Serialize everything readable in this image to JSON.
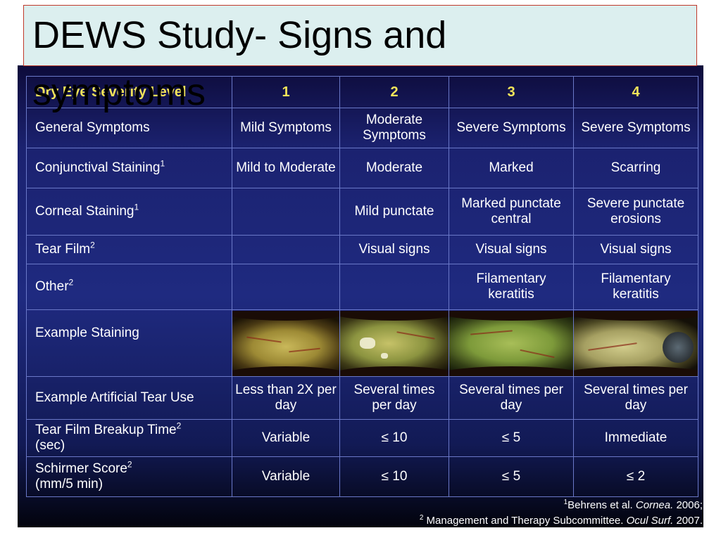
{
  "title": {
    "line1": "DEWS Study- Signs and",
    "line2": "symptoms"
  },
  "table": {
    "header_label": "Dry Eye Severity Level",
    "levels": [
      "1",
      "2",
      "3",
      "4"
    ],
    "rows": [
      {
        "label": "General Symptoms",
        "sup": "",
        "cells": [
          "Mild Symptoms",
          "Moderate Symptoms",
          "Severe Symptoms",
          "Severe Symptoms"
        ]
      },
      {
        "label": "Conjunctival Staining",
        "sup": "1",
        "cells": [
          "Mild to Moderate",
          "Moderate",
          "Marked",
          "Scarring"
        ]
      },
      {
        "label": "Corneal Staining",
        "sup": "1",
        "cells": [
          "",
          "Mild punctate",
          "Marked punctate central",
          "Severe punctate erosions"
        ]
      },
      {
        "label": "Tear Film",
        "sup": "2",
        "cells": [
          "",
          "Visual signs",
          "Visual signs",
          "Visual signs"
        ]
      },
      {
        "label": "Other",
        "sup": "2",
        "cells": [
          "",
          "",
          "Filamentary keratitis",
          "Filamentary keratitis"
        ]
      },
      {
        "label": "Example Staining",
        "sup": "",
        "cells": []
      },
      {
        "label": "Example Artificial Tear Use",
        "sup": "",
        "cells": [
          "Less than 2X per day",
          "Several times per day",
          "Several times per day",
          "Several times per day"
        ]
      },
      {
        "label": "Tear Film Breakup Time",
        "sup": "2",
        "label_suffix": "(sec)",
        "cells": [
          "Variable",
          "≤ 10",
          "≤ 5",
          "Immediate"
        ]
      },
      {
        "label": "Schirmer Score",
        "sup": "2",
        "label_suffix": "(mm/5 min)",
        "cells": [
          "Variable",
          "≤ 10",
          "≤ 5",
          "≤ 2"
        ]
      }
    ]
  },
  "references": {
    "ref1_sup": "1",
    "ref1_text": "Behrens et al. ",
    "ref1_journal": "Cornea.",
    "ref1_year": " 2006;",
    "ref2_sup": "2",
    "ref2_text": " Management and Therapy Subcommittee. ",
    "ref2_journal": "Ocul Surf.",
    "ref2_year": " 2007."
  }
}
